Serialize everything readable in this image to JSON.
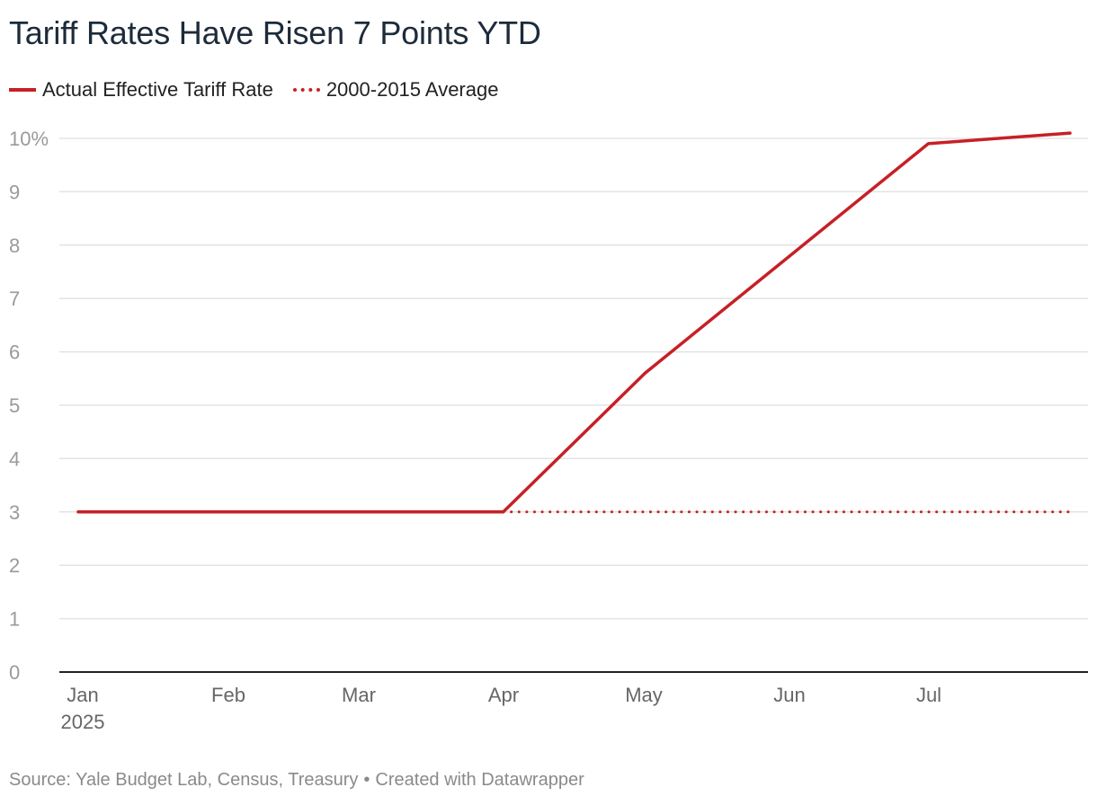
{
  "chart_data": {
    "type": "line",
    "title": "Tariff Rates Have Risen 7 Points YTD",
    "xlabel": "",
    "ylabel": "",
    "x_tick_labels": [
      "Jan",
      "Feb",
      "Mar",
      "Apr",
      "May",
      "Jun",
      "Jul"
    ],
    "x_year_label": "2025",
    "y_ticks": [
      {
        "value": 0,
        "label": "0"
      },
      {
        "value": 1,
        "label": "1"
      },
      {
        "value": 2,
        "label": "2"
      },
      {
        "value": 3,
        "label": "3"
      },
      {
        "value": 4,
        "label": "4"
      },
      {
        "value": 5,
        "label": "5"
      },
      {
        "value": 6,
        "label": "6"
      },
      {
        "value": 7,
        "label": "7"
      },
      {
        "value": 8,
        "label": "8"
      },
      {
        "value": 9,
        "label": "9"
      },
      {
        "value": 10,
        "label": "10%"
      }
    ],
    "ylim": [
      0,
      10
    ],
    "xlim_months": [
      1,
      8
    ],
    "grid": true,
    "legend_position": "top-left",
    "series": [
      {
        "name": "Actual Effective Tariff Rate",
        "style": "solid",
        "color": "#c62026",
        "points": [
          {
            "month": 1.0,
            "value": 3.0
          },
          {
            "month": 4.0,
            "value": 3.0
          },
          {
            "month": 5.0,
            "value": 5.6
          },
          {
            "month": 7.0,
            "value": 9.9
          },
          {
            "month": 8.0,
            "value": 10.1
          }
        ]
      },
      {
        "name": "2000-2015 Average",
        "style": "dotted",
        "color": "#c62026",
        "points": [
          {
            "month": 1.0,
            "value": 3.0
          },
          {
            "month": 8.0,
            "value": 3.0
          }
        ]
      }
    ]
  },
  "legend": {
    "items": [
      {
        "label": "Actual Effective Tariff Rate"
      },
      {
        "label": "2000-2015 Average"
      }
    ]
  },
  "footer": {
    "source": "Source: Yale Budget Lab, Census, Treasury",
    "separator": "•",
    "credit": "Created with Datawrapper"
  },
  "colors": {
    "series": "#c62026",
    "grid": "#e3e3e3",
    "axis": "#222222",
    "title": "#1d2b3a"
  }
}
